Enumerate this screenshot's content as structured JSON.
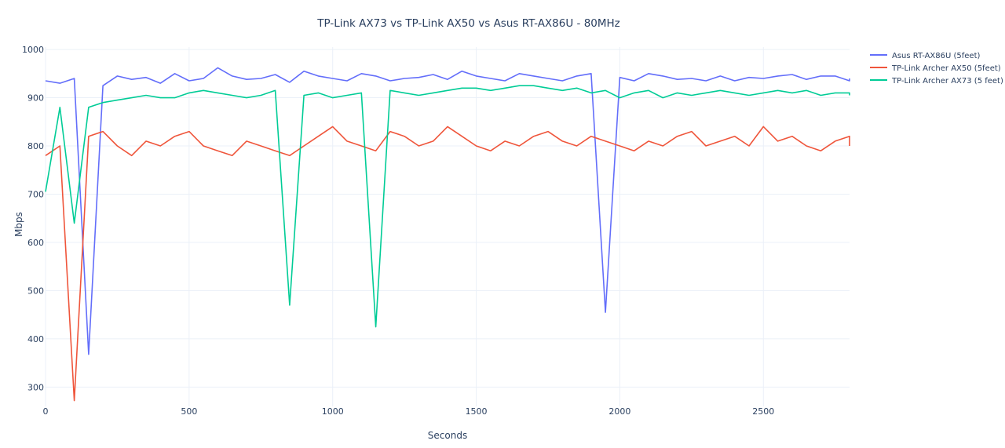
{
  "chart_data": {
    "type": "line",
    "title": "TP-Link AX73 vs TP-Link AX50 vs Asus RT-AX86U - 80MHz",
    "xlabel": "Seconds",
    "ylabel": "Mbps",
    "xlim": [
      0,
      2800
    ],
    "ylim": [
      260,
      1005
    ],
    "x_ticks": [
      0,
      500,
      1000,
      1500,
      2000,
      2500
    ],
    "y_ticks": [
      300,
      400,
      500,
      600,
      700,
      800,
      900,
      1000
    ],
    "grid": true,
    "legend_position": "top-right",
    "x_sample_step": 50,
    "series": [
      {
        "name": "Asus RT-AX86U (5feet)",
        "color": "#636efa",
        "values": [
          935,
          930,
          940,
          368,
          925,
          945,
          938,
          942,
          930,
          950,
          935,
          940,
          962,
          945,
          938,
          940,
          948,
          932,
          955,
          945,
          940,
          935,
          950,
          945,
          935,
          940,
          942,
          948,
          938,
          955,
          945,
          940,
          935,
          950,
          945,
          940,
          935,
          945,
          950,
          455,
          942,
          935,
          950,
          945,
          938,
          940,
          935,
          945,
          935,
          942,
          940,
          945,
          948,
          938,
          945,
          945,
          935,
          940
        ]
      },
      {
        "name": "TP-Link Archer AX50 (5feet)",
        "color": "#ef553b",
        "values": [
          780,
          800,
          272,
          820,
          830,
          800,
          780,
          810,
          800,
          820,
          830,
          800,
          790,
          780,
          810,
          800,
          790,
          780,
          800,
          820,
          840,
          810,
          800,
          790,
          830,
          820,
          800,
          810,
          840,
          820,
          800,
          790,
          810,
          800,
          820,
          830,
          810,
          800,
          820,
          810,
          800,
          790,
          810,
          800,
          820,
          830,
          800,
          810,
          820,
          800,
          840,
          810,
          820,
          800,
          790,
          810,
          820,
          800
        ]
      },
      {
        "name": "TP-Link Archer AX73 (5 feet)",
        "color": "#00cc96",
        "values": [
          705,
          880,
          640,
          880,
          890,
          895,
          900,
          905,
          900,
          900,
          910,
          915,
          910,
          905,
          900,
          905,
          915,
          470,
          905,
          910,
          900,
          905,
          910,
          425,
          915,
          910,
          905,
          910,
          915,
          920,
          920,
          915,
          920,
          925,
          925,
          920,
          915,
          920,
          910,
          915,
          900,
          910,
          915,
          900,
          910,
          905,
          910,
          915,
          910,
          905,
          910,
          915,
          910,
          915,
          905,
          910,
          910,
          905
        ]
      }
    ]
  }
}
